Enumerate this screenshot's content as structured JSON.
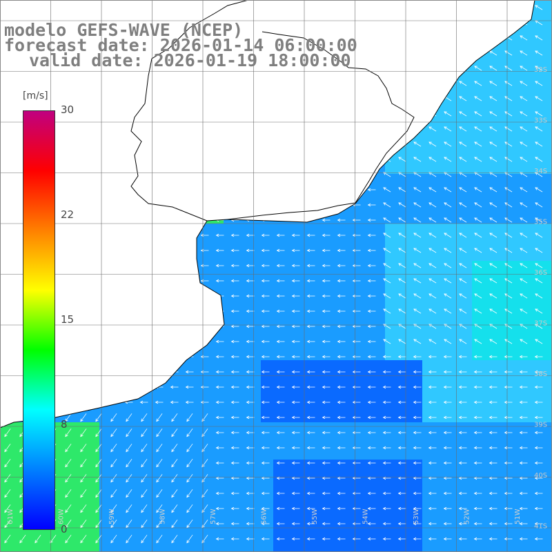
{
  "title": {
    "line1": "modelo GEFS-WAVE (NCEP)",
    "line2": "forecast date: 2026-01-14 06:00:00",
    "line3": "valid date: 2026-01-19 18:00:00"
  },
  "colorbar": {
    "unit": "[m/s]",
    "tick_labels": [
      "30",
      "22",
      "15",
      "8",
      "0"
    ],
    "min": 0,
    "max": 30,
    "colors": [
      "#0000ff",
      "#0080ff",
      "#00ffff",
      "#00ff00",
      "#ffff00",
      "#ff8000",
      "#ff0000",
      "#c00080"
    ]
  },
  "map": {
    "ocean_colors": {
      "dark_blue": "#0a6aff",
      "mid_blue": "#1a9cff",
      "light_blue": "#30c8ff",
      "cyan": "#15e0ec",
      "green": "#2ee86a"
    },
    "lat_labels": [
      "32S",
      "33S",
      "34S",
      "35S",
      "36S",
      "37S",
      "38S",
      "39S",
      "40S",
      "41S"
    ],
    "lon_labels": [
      "61W",
      "60W",
      "59W",
      "58W",
      "57W",
      "56W",
      "55W",
      "54W",
      "53W",
      "52W",
      "51W"
    ],
    "vector_color": "#ffffff",
    "land_color": "#ffffff",
    "coast_color": "#000000",
    "grid_color": "#6a6a6a"
  }
}
